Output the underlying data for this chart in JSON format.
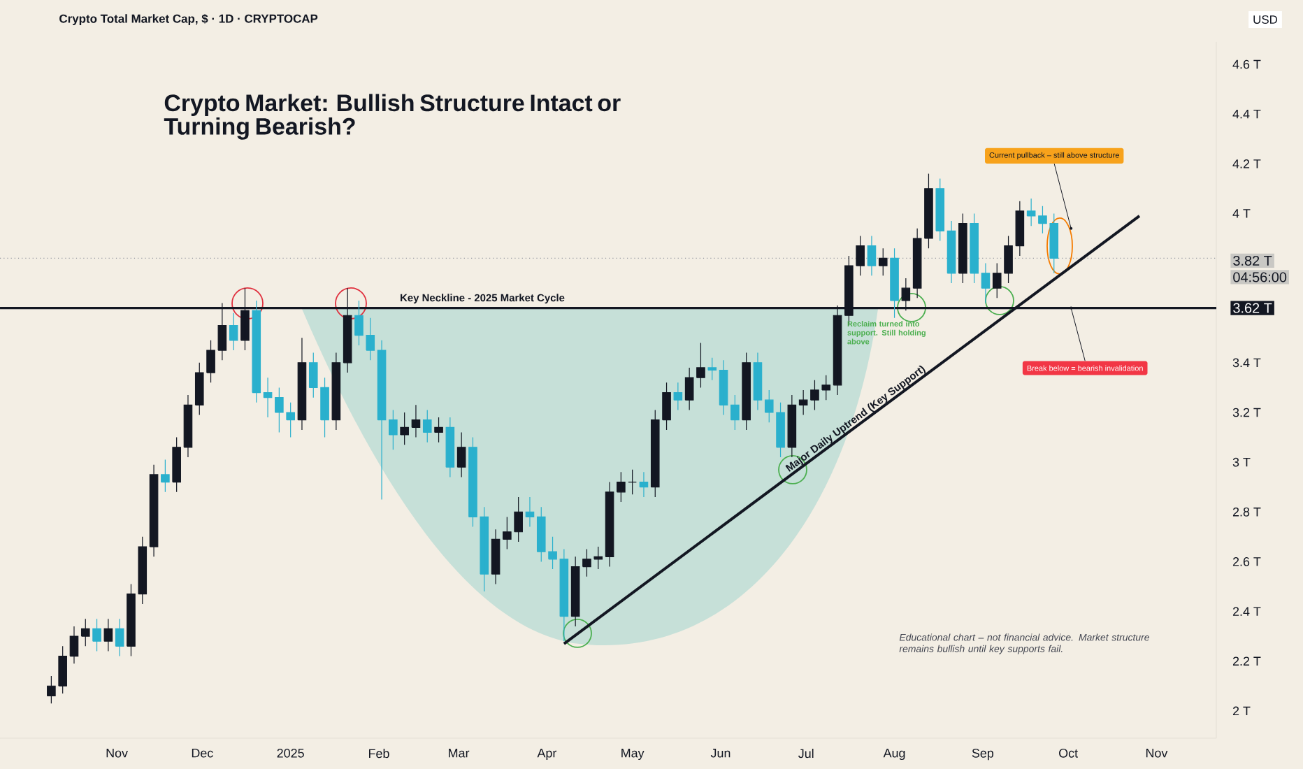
{
  "chart_data": {
    "type": "candlestick",
    "title": "Crypto Market: Bullish Structure Intact or Turning Bearish?",
    "subtitle": "Crypto Total Market Cap, $ · 1D · CRYPTOCAP",
    "x": [
      "2024-10-09",
      "2024-10-13",
      "2024-10-17",
      "2024-10-21",
      "2024-10-25",
      "2024-10-29",
      "2024-11-02",
      "2024-11-06",
      "2024-11-10",
      "2024-11-14",
      "2024-11-18",
      "2024-11-22",
      "2024-11-26",
      "2024-11-30",
      "2024-12-04",
      "2024-12-08",
      "2024-12-12",
      "2024-12-16",
      "2024-12-20",
      "2024-12-24",
      "2024-12-28",
      "2025-01-01",
      "2025-01-05",
      "2025-01-09",
      "2025-01-13",
      "2025-01-17",
      "2025-01-21",
      "2025-01-25",
      "2025-01-29",
      "2025-02-02",
      "2025-02-06",
      "2025-02-10",
      "2025-02-14",
      "2025-02-18",
      "2025-02-22",
      "2025-02-26",
      "2025-03-02",
      "2025-03-06",
      "2025-03-10",
      "2025-03-14",
      "2025-03-18",
      "2025-03-22",
      "2025-03-26",
      "2025-03-30",
      "2025-04-03",
      "2025-04-07",
      "2025-04-11",
      "2025-04-15",
      "2025-04-19",
      "2025-04-23",
      "2025-04-27",
      "2025-05-01",
      "2025-05-05",
      "2025-05-09",
      "2025-05-13",
      "2025-05-17",
      "2025-05-21",
      "2025-05-25",
      "2025-05-29",
      "2025-06-02",
      "2025-06-06",
      "2025-06-10",
      "2025-06-14",
      "2025-06-18",
      "2025-06-22",
      "2025-06-26",
      "2025-06-30",
      "2025-07-04",
      "2025-07-08",
      "2025-07-12",
      "2025-07-16",
      "2025-07-20",
      "2025-07-24",
      "2025-07-28",
      "2025-08-01",
      "2025-08-05",
      "2025-08-09",
      "2025-08-13",
      "2025-08-17",
      "2025-08-21",
      "2025-08-25",
      "2025-08-29",
      "2025-09-02",
      "2025-09-06",
      "2025-09-10",
      "2025-09-14",
      "2025-09-18",
      "2025-09-22",
      "2025-09-26"
    ],
    "ohlc": [
      [
        2.06,
        2.14,
        2.03,
        2.1
      ],
      [
        2.1,
        2.26,
        2.07,
        2.22
      ],
      [
        2.22,
        2.34,
        2.19,
        2.3
      ],
      [
        2.3,
        2.37,
        2.26,
        2.33
      ],
      [
        2.33,
        2.37,
        2.24,
        2.28
      ],
      [
        2.28,
        2.37,
        2.24,
        2.33
      ],
      [
        2.33,
        2.37,
        2.22,
        2.26
      ],
      [
        2.26,
        2.51,
        2.22,
        2.47
      ],
      [
        2.47,
        2.7,
        2.43,
        2.66
      ],
      [
        2.66,
        2.99,
        2.62,
        2.95
      ],
      [
        2.95,
        3.01,
        2.88,
        2.92
      ],
      [
        2.92,
        3.1,
        2.88,
        3.06
      ],
      [
        3.06,
        3.27,
        3.02,
        3.23
      ],
      [
        3.23,
        3.4,
        3.19,
        3.36
      ],
      [
        3.36,
        3.49,
        3.32,
        3.45
      ],
      [
        3.45,
        3.64,
        3.41,
        3.55
      ],
      [
        3.55,
        3.6,
        3.45,
        3.49
      ],
      [
        3.49,
        3.7,
        3.45,
        3.61
      ],
      [
        3.61,
        3.65,
        3.24,
        3.28
      ],
      [
        3.28,
        3.34,
        3.18,
        3.26
      ],
      [
        3.26,
        3.3,
        3.12,
        3.2
      ],
      [
        3.2,
        3.24,
        3.1,
        3.17
      ],
      [
        3.17,
        3.5,
        3.13,
        3.4
      ],
      [
        3.4,
        3.44,
        3.26,
        3.3
      ],
      [
        3.3,
        3.34,
        3.1,
        3.17
      ],
      [
        3.17,
        3.44,
        3.13,
        3.4
      ],
      [
        3.4,
        3.7,
        3.36,
        3.59
      ],
      [
        3.59,
        3.65,
        3.47,
        3.51
      ],
      [
        3.51,
        3.58,
        3.41,
        3.45
      ],
      [
        3.45,
        3.49,
        2.85,
        3.17
      ],
      [
        3.17,
        3.21,
        3.05,
        3.11
      ],
      [
        3.11,
        3.2,
        3.07,
        3.14
      ],
      [
        3.14,
        3.23,
        3.1,
        3.17
      ],
      [
        3.17,
        3.21,
        3.08,
        3.12
      ],
      [
        3.12,
        3.18,
        3.08,
        3.14
      ],
      [
        3.14,
        3.18,
        2.94,
        2.98
      ],
      [
        2.98,
        3.12,
        2.94,
        3.06
      ],
      [
        3.06,
        3.1,
        2.74,
        2.78
      ],
      [
        2.78,
        2.82,
        2.48,
        2.55
      ],
      [
        2.55,
        2.73,
        2.51,
        2.69
      ],
      [
        2.69,
        2.78,
        2.65,
        2.72
      ],
      [
        2.72,
        2.86,
        2.68,
        2.8
      ],
      [
        2.8,
        2.86,
        2.74,
        2.78
      ],
      [
        2.78,
        2.82,
        2.6,
        2.64
      ],
      [
        2.64,
        2.7,
        2.57,
        2.61
      ],
      [
        2.61,
        2.65,
        2.28,
        2.38
      ],
      [
        2.38,
        2.62,
        2.34,
        2.58
      ],
      [
        2.58,
        2.65,
        2.54,
        2.61
      ],
      [
        2.61,
        2.66,
        2.57,
        2.62
      ],
      [
        2.62,
        2.92,
        2.58,
        2.88
      ],
      [
        2.88,
        2.96,
        2.84,
        2.92
      ],
      [
        2.92,
        2.97,
        2.87,
        2.92
      ],
      [
        2.92,
        2.96,
        2.86,
        2.9
      ],
      [
        2.9,
        3.21,
        2.86,
        3.17
      ],
      [
        3.17,
        3.32,
        3.13,
        3.28
      ],
      [
        3.28,
        3.32,
        3.21,
        3.25
      ],
      [
        3.25,
        3.38,
        3.21,
        3.34
      ],
      [
        3.34,
        3.48,
        3.3,
        3.38
      ],
      [
        3.38,
        3.42,
        3.33,
        3.37
      ],
      [
        3.37,
        3.41,
        3.19,
        3.23
      ],
      [
        3.23,
        3.27,
        3.13,
        3.17
      ],
      [
        3.17,
        3.44,
        3.13,
        3.4
      ],
      [
        3.4,
        3.44,
        3.21,
        3.25
      ],
      [
        3.25,
        3.29,
        3.16,
        3.2
      ],
      [
        3.2,
        3.24,
        3.02,
        3.06
      ],
      [
        3.06,
        3.27,
        3.02,
        3.23
      ],
      [
        3.23,
        3.29,
        3.19,
        3.25
      ],
      [
        3.25,
        3.33,
        3.21,
        3.29
      ],
      [
        3.29,
        3.35,
        3.25,
        3.31
      ],
      [
        3.31,
        3.63,
        3.27,
        3.59
      ],
      [
        3.59,
        3.83,
        3.55,
        3.79
      ],
      [
        3.79,
        3.91,
        3.75,
        3.87
      ],
      [
        3.87,
        3.91,
        3.75,
        3.79
      ],
      [
        3.79,
        3.86,
        3.75,
        3.82
      ],
      [
        3.82,
        3.86,
        3.58,
        3.65
      ],
      [
        3.65,
        3.74,
        3.61,
        3.7
      ],
      [
        3.7,
        3.94,
        3.66,
        3.9
      ],
      [
        3.9,
        4.16,
        3.86,
        4.1
      ],
      [
        4.1,
        4.14,
        3.89,
        3.93
      ],
      [
        3.93,
        3.97,
        3.72,
        3.76
      ],
      [
        3.76,
        4.0,
        3.72,
        3.96
      ],
      [
        3.96,
        4.0,
        3.72,
        3.76
      ],
      [
        3.76,
        3.8,
        3.64,
        3.7
      ],
      [
        3.7,
        3.8,
        3.66,
        3.76
      ],
      [
        3.76,
        3.91,
        3.72,
        3.87
      ],
      [
        3.87,
        4.05,
        3.83,
        4.01
      ],
      [
        4.01,
        4.06,
        3.95,
        3.99
      ],
      [
        3.99,
        4.03,
        3.92,
        3.96
      ],
      [
        3.96,
        4.0,
        3.76,
        3.82
      ]
    ],
    "series": [
      {
        "type": "line",
        "x": [
          "2025-04-07",
          "2025-10-26"
        ],
        "values": [
          2.27,
          3.99
        ],
        "color": "#131722"
      }
    ],
    "xlim": [
      "2024-09-21",
      "2025-11-22"
    ],
    "ylim": [
      1.89,
      4.69
    ],
    "xticks": [
      {
        "value": "2024-11-01",
        "label": "Nov"
      },
      {
        "value": "2024-12-01",
        "label": "Dec"
      },
      {
        "value": "2025-01-01",
        "label": "2025"
      },
      {
        "value": "2025-02-01",
        "label": "Feb"
      },
      {
        "value": "2025-03-01",
        "label": "Mar"
      },
      {
        "value": "2025-04-01",
        "label": "Apr"
      },
      {
        "value": "2025-05-01",
        "label": "May"
      },
      {
        "value": "2025-06-01",
        "label": "Jun"
      },
      {
        "value": "2025-07-01",
        "label": "Jul"
      },
      {
        "value": "2025-08-01",
        "label": "Aug"
      },
      {
        "value": "2025-09-01",
        "label": "Sep"
      },
      {
        "value": "2025-10-01",
        "label": "Oct"
      },
      {
        "value": "2025-11-01",
        "label": "Nov"
      }
    ],
    "yticks": [
      {
        "value": 2,
        "label": "2 T"
      },
      {
        "value": 2.2,
        "label": "2.2 T"
      },
      {
        "value": 2.4,
        "label": "2.4 T"
      },
      {
        "value": 2.6,
        "label": "2.6 T"
      },
      {
        "value": 2.8,
        "label": "2.8 T"
      },
      {
        "value": 3,
        "label": "3 T"
      },
      {
        "value": 3.2,
        "label": "3.2 T"
      },
      {
        "value": 3.4,
        "label": "3.4 T"
      },
      {
        "value": 4,
        "label": "4 T"
      },
      {
        "value": 4.2,
        "label": "4.2 T"
      },
      {
        "value": 4.4,
        "label": "4.4 T"
      },
      {
        "value": 4.6,
        "label": "4.6 T"
      }
    ],
    "ref_lines": [
      {
        "axis": "y",
        "value": 3.62,
        "label": "Key Neckline - 2025 Market Cycle",
        "color": "#131722"
      },
      {
        "axis": "y",
        "value": 3.82,
        "label": "3.82 T",
        "color": "#9598a1",
        "line_style": "dotted"
      }
    ],
    "annotations": [
      "3.62 T",
      "04:56:00",
      "USD",
      {
        "text": "Current pullback – still above structure",
        "x": "2025-10-02",
        "y": 3.94
      },
      {
        "text": "Break below = bearish invalidation",
        "x": "2025-10-02",
        "y": 3.62
      },
      {
        "text": "Reclaim turned into support. Still holding above",
        "x": "2025-08-01",
        "y": 3.62
      },
      {
        "text": "Major Daily Uptrend (Key Support)",
        "x": "2025-07-20",
        "y": 3.15
      },
      "Educational chart – not financial advice. Market structure remains bullish until key supports fail."
    ]
  }
}
